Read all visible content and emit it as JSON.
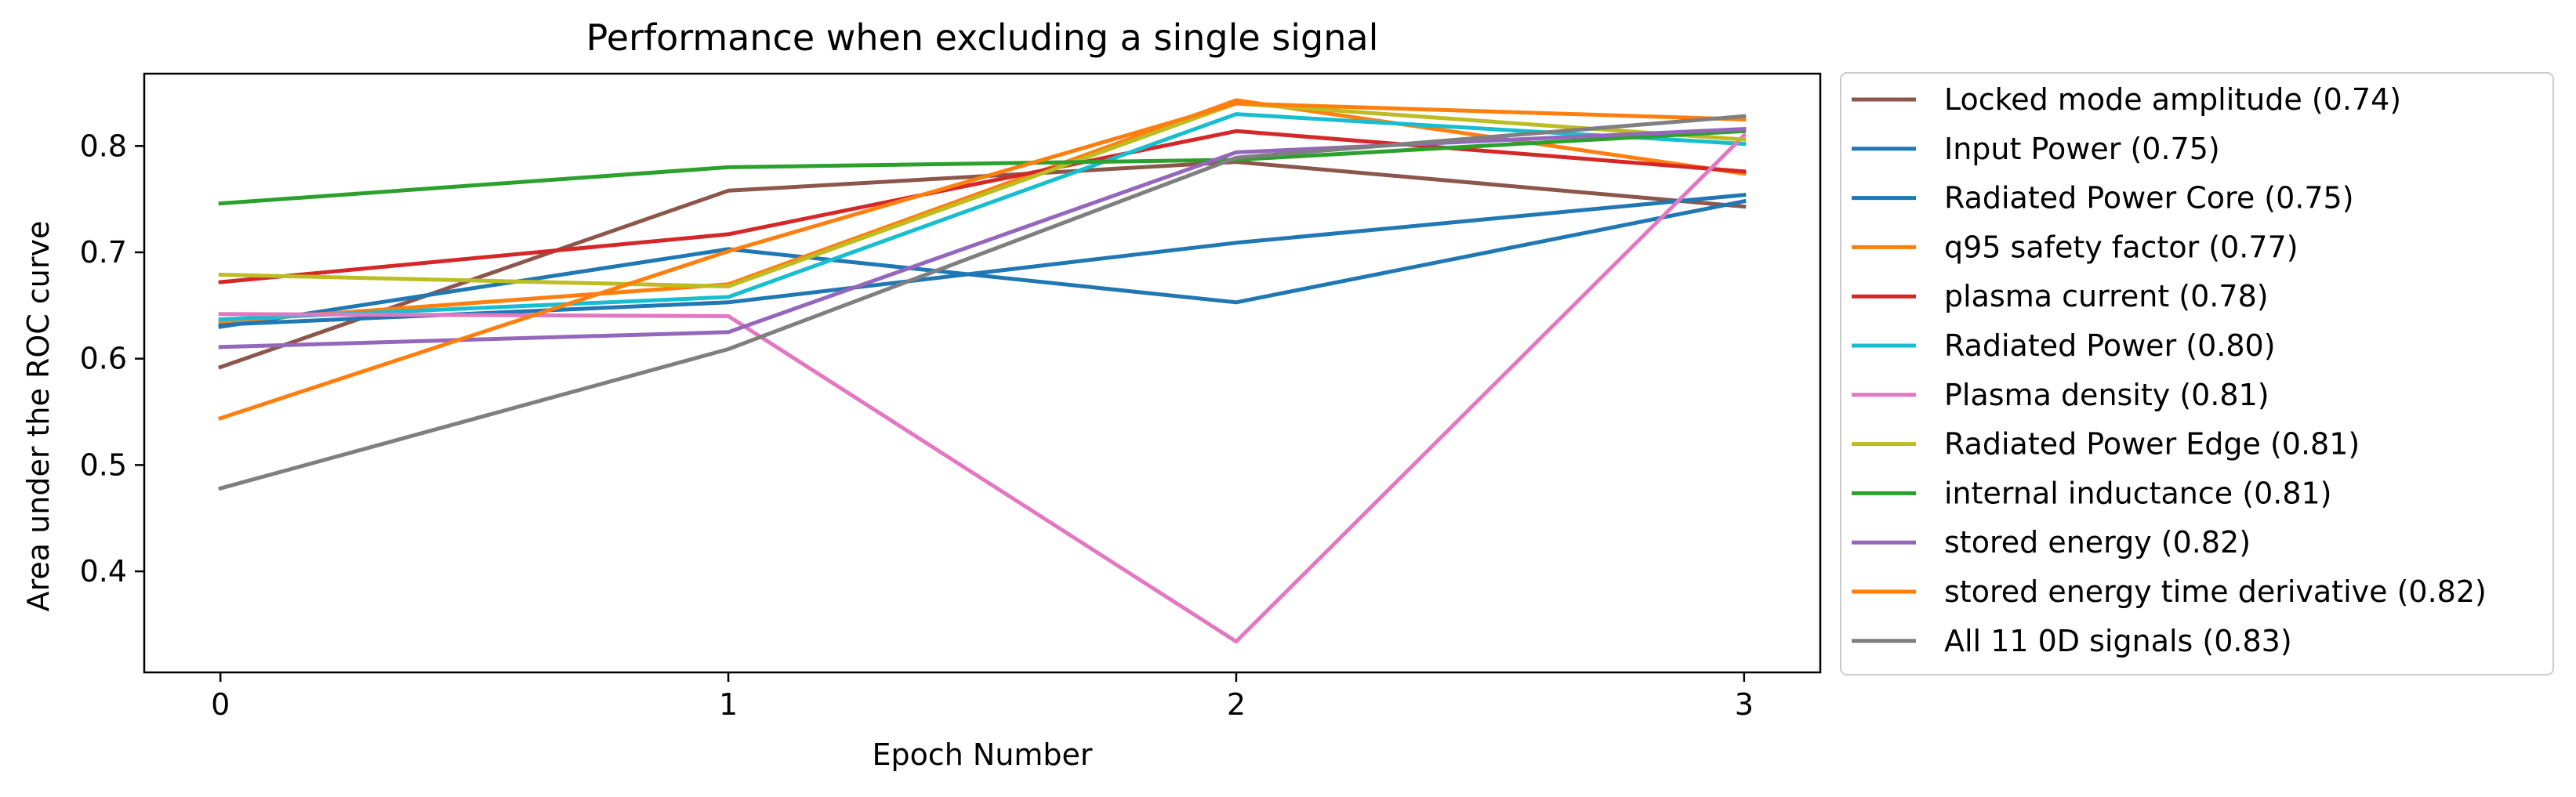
{
  "chart_data": {
    "type": "line",
    "title": "Performance when excluding a single signal",
    "xlabel": "Epoch Number",
    "ylabel": "Area under the ROC curve",
    "x": [
      0,
      1,
      2,
      3
    ],
    "xticks": [
      "0",
      "1",
      "2",
      "3"
    ],
    "yticks": [
      "0.4",
      "0.5",
      "0.6",
      "0.7",
      "0.8"
    ],
    "xlim": [
      -0.15,
      3.15
    ],
    "ylim": [
      0.305,
      0.868
    ],
    "grid": false,
    "legend_position": "outside-right",
    "series": [
      {
        "name": "Locked mode amplitude (0.74)",
        "color": "#8c564b",
        "values": [
          0.592,
          0.758,
          0.785,
          0.743
        ]
      },
      {
        "name": "Input Power (0.75)",
        "color": "#1f77b4",
        "values": [
          0.63,
          0.703,
          0.653,
          0.748
        ]
      },
      {
        "name": "Radiated Power Core (0.75)",
        "color": "#1f77b4",
        "values": [
          0.632,
          0.653,
          0.709,
          0.754
        ]
      },
      {
        "name": "q95 safety factor (0.77)",
        "color": "#ff7f0e",
        "values": [
          0.635,
          0.67,
          0.843,
          0.774
        ]
      },
      {
        "name": "plasma current (0.78)",
        "color": "#d62728",
        "values": [
          0.672,
          0.717,
          0.814,
          0.776
        ]
      },
      {
        "name": "Radiated Power (0.80)",
        "color": "#17becf",
        "values": [
          0.637,
          0.658,
          0.83,
          0.802
        ]
      },
      {
        "name": "Plasma density (0.81)",
        "color": "#e377c2",
        "values": [
          0.642,
          0.64,
          0.334,
          0.81
        ]
      },
      {
        "name": "Radiated Power Edge (0.81)",
        "color": "#bcbd22",
        "values": [
          0.679,
          0.668,
          0.84,
          0.806
        ]
      },
      {
        "name": "internal inductance (0.81)",
        "color": "#2ca02c",
        "values": [
          0.746,
          0.78,
          0.787,
          0.814
        ]
      },
      {
        "name": "stored energy (0.82)",
        "color": "#9467bd",
        "values": [
          0.611,
          0.625,
          0.794,
          0.816
        ]
      },
      {
        "name": "stored energy time derivative (0.82)",
        "color": "#ff7f0e",
        "values": [
          0.544,
          0.701,
          0.84,
          0.825
        ]
      },
      {
        "name": "All 11 0D signals (0.83)",
        "color": "#7f7f7f",
        "values": [
          0.478,
          0.609,
          0.789,
          0.828
        ]
      }
    ]
  }
}
